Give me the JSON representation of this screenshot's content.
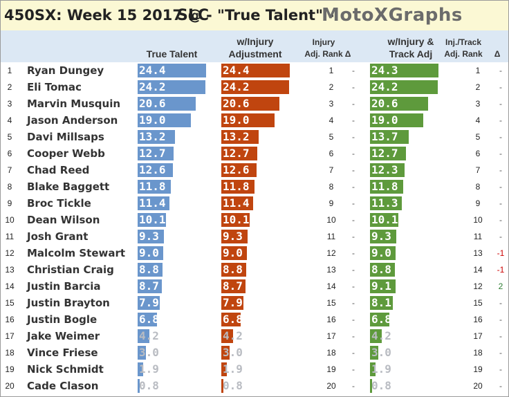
{
  "title": {
    "main": "450SX: Week 15 2017 @",
    "team": "SLC",
    "sub": "- \"True Talent\" -",
    "brand": "MotoXGraphs"
  },
  "headers": {
    "true_talent": "True Talent",
    "injury_adj_l1": "w/Injury",
    "injury_adj_l2": "Adjustment",
    "injury_rank_l1": "Injury",
    "injury_rank_l2": "Adj. Rank",
    "delta1": "Δ",
    "track_adj_l1": "w/Injury &",
    "track_adj_l2": "Track Adj",
    "track_rank_l1": "Inj./Track",
    "track_rank_l2": "Adj. Rank",
    "delta2": "Δ"
  },
  "colors": {
    "title_bg": "#fbf8d4",
    "header_bg": "#dce8f4",
    "true_talent": "#6a96cc",
    "injury_adj": "#c0450f",
    "track_adj": "#5e9a3c",
    "delta_neg": "#cc0000",
    "delta_pos": "#2e7d32",
    "delta_zero": "#555555"
  },
  "chart_data": {
    "type": "table",
    "value_max": 24.4,
    "columns": [
      "Rank",
      "Rider",
      "True Talent",
      "w/Injury Adjustment",
      "Injury Adj. Rank",
      "Δ",
      "w/Injury & Track Adj",
      "Inj./Track Adj. Rank",
      "Δ"
    ],
    "rows": [
      {
        "rank": "1",
        "name": "Ryan Dungey",
        "true_talent": "24.4",
        "injury_adj": "24.4",
        "injury_rank": "1",
        "delta1": "-",
        "track_adj": "24.3",
        "track_rank": "1",
        "delta2": "-"
      },
      {
        "rank": "2",
        "name": "Eli Tomac",
        "true_talent": "24.2",
        "injury_adj": "24.2",
        "injury_rank": "2",
        "delta1": "-",
        "track_adj": "24.2",
        "track_rank": "2",
        "delta2": "-"
      },
      {
        "rank": "3",
        "name": "Marvin Musquin",
        "true_talent": "20.6",
        "injury_adj": "20.6",
        "injury_rank": "3",
        "delta1": "-",
        "track_adj": "20.6",
        "track_rank": "3",
        "delta2": "-"
      },
      {
        "rank": "4",
        "name": "Jason Anderson",
        "true_talent": "19.0",
        "injury_adj": "19.0",
        "injury_rank": "4",
        "delta1": "-",
        "track_adj": "19.0",
        "track_rank": "4",
        "delta2": "-"
      },
      {
        "rank": "5",
        "name": "Davi Millsaps",
        "true_talent": "13.2",
        "injury_adj": "13.2",
        "injury_rank": "5",
        "delta1": "-",
        "track_adj": "13.7",
        "track_rank": "5",
        "delta2": "-"
      },
      {
        "rank": "6",
        "name": "Cooper Webb",
        "true_talent": "12.7",
        "injury_adj": "12.7",
        "injury_rank": "6",
        "delta1": "-",
        "track_adj": "12.7",
        "track_rank": "6",
        "delta2": "-"
      },
      {
        "rank": "7",
        "name": "Chad Reed",
        "true_talent": "12.6",
        "injury_adj": "12.6",
        "injury_rank": "7",
        "delta1": "-",
        "track_adj": "12.3",
        "track_rank": "7",
        "delta2": "-"
      },
      {
        "rank": "8",
        "name": "Blake Baggett",
        "true_talent": "11.8",
        "injury_adj": "11.8",
        "injury_rank": "8",
        "delta1": "-",
        "track_adj": "11.8",
        "track_rank": "8",
        "delta2": "-"
      },
      {
        "rank": "9",
        "name": "Broc Tickle",
        "true_talent": "11.4",
        "injury_adj": "11.4",
        "injury_rank": "9",
        "delta1": "-",
        "track_adj": "11.3",
        "track_rank": "9",
        "delta2": "-"
      },
      {
        "rank": "10",
        "name": "Dean Wilson",
        "true_talent": "10.1",
        "injury_adj": "10.1",
        "injury_rank": "10",
        "delta1": "-",
        "track_adj": "10.1",
        "track_rank": "10",
        "delta2": "-"
      },
      {
        "rank": "11",
        "name": "Josh Grant",
        "true_talent": "9.3",
        "injury_adj": "9.3",
        "injury_rank": "11",
        "delta1": "-",
        "track_adj": "9.3",
        "track_rank": "11",
        "delta2": "-"
      },
      {
        "rank": "12",
        "name": "Malcolm Stewart",
        "true_talent": "9.0",
        "injury_adj": "9.0",
        "injury_rank": "12",
        "delta1": "-",
        "track_adj": "9.0",
        "track_rank": "13",
        "delta2": "-1"
      },
      {
        "rank": "13",
        "name": "Christian Craig",
        "true_talent": "8.8",
        "injury_adj": "8.8",
        "injury_rank": "13",
        "delta1": "-",
        "track_adj": "8.8",
        "track_rank": "14",
        "delta2": "-1"
      },
      {
        "rank": "14",
        "name": "Justin Barcia",
        "true_talent": "8.7",
        "injury_adj": "8.7",
        "injury_rank": "14",
        "delta1": "-",
        "track_adj": "9.1",
        "track_rank": "12",
        "delta2": "2"
      },
      {
        "rank": "15",
        "name": "Justin Brayton",
        "true_talent": "7.9",
        "injury_adj": "7.9",
        "injury_rank": "15",
        "delta1": "-",
        "track_adj": "8.1",
        "track_rank": "15",
        "delta2": "-"
      },
      {
        "rank": "16",
        "name": "Justin Bogle",
        "true_talent": "6.8",
        "injury_adj": "6.8",
        "injury_rank": "16",
        "delta1": "-",
        "track_adj": "6.8",
        "track_rank": "16",
        "delta2": "-"
      },
      {
        "rank": "17",
        "name": "Jake Weimer",
        "true_talent": "4.2",
        "injury_adj": "4.2",
        "injury_rank": "17",
        "delta1": "-",
        "track_adj": "4.2",
        "track_rank": "17",
        "delta2": "-"
      },
      {
        "rank": "18",
        "name": "Vince Friese",
        "true_talent": "3.0",
        "injury_adj": "3.0",
        "injury_rank": "18",
        "delta1": "-",
        "track_adj": "3.0",
        "track_rank": "18",
        "delta2": "-"
      },
      {
        "rank": "19",
        "name": "Nick Schmidt",
        "true_talent": "1.9",
        "injury_adj": "1.9",
        "injury_rank": "19",
        "delta1": "-",
        "track_adj": "1.9",
        "track_rank": "19",
        "delta2": "-"
      },
      {
        "rank": "20",
        "name": "Cade Clason",
        "true_talent": "0.8",
        "injury_adj": "0.8",
        "injury_rank": "20",
        "delta1": "-",
        "track_adj": "0.8",
        "track_rank": "20",
        "delta2": "-"
      }
    ]
  }
}
